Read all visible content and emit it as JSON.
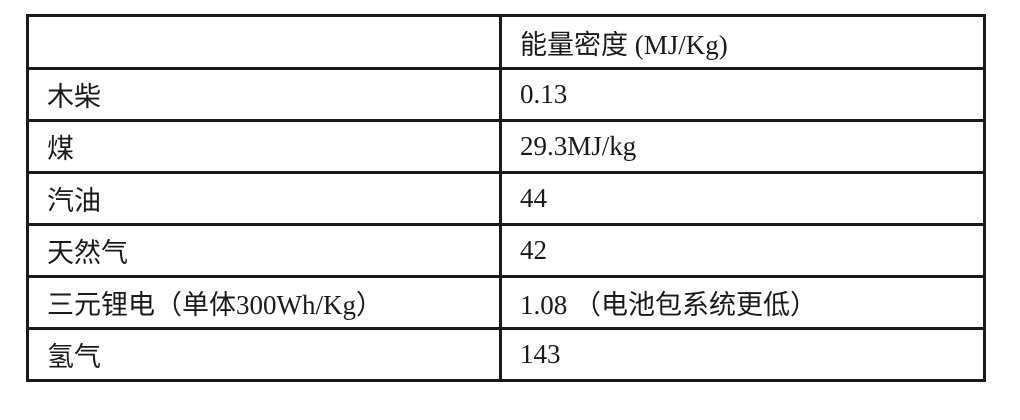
{
  "table": {
    "header": [
      "",
      "能量密度 (MJ/Kg)"
    ],
    "rows": [
      [
        "木柴",
        "0.13"
      ],
      [
        "煤",
        "29.3MJ/kg"
      ],
      [
        "汽油",
        "44"
      ],
      [
        "天然气",
        "42"
      ],
      [
        "三元锂电（单体300Wh/Kg）",
        "1.08 （电池包系统更低）"
      ],
      [
        "氢气",
        "143"
      ]
    ]
  }
}
